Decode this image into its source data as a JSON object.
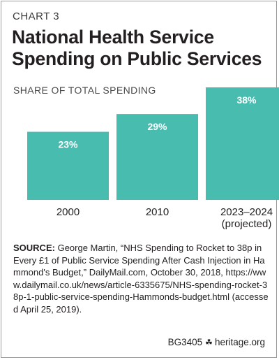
{
  "chart_label": "CHART 3",
  "title_line1": "National Health Service",
  "title_line2": "Spending on Public Services",
  "chart_data": {
    "type": "bar",
    "title": "National Health Service Spending on Public Services",
    "ylabel": "SHARE OF TOTAL SPENDING",
    "categories": [
      [
        "2000"
      ],
      [
        "2010"
      ],
      [
        "2023–2024",
        "(projected)"
      ]
    ],
    "values": [
      23,
      29,
      38
    ],
    "value_labels": [
      "23%",
      "29%",
      "38%"
    ],
    "ylim": [
      0,
      38
    ],
    "grid": false,
    "bar_color": "#49bcb0"
  },
  "source": {
    "label": "SOURCE:",
    "text": "George Martin, “NHS Spending to Rocket to 38p in Every £1 of Public Service Spending After Cash Injection in Hammond's Budget,” DailyMail.com, October 30, 2018, https://www.dailymail.co.uk/news/article-6335675/NHS-spending-rocket-38p-1-public-service-spending-Hammonds-budget.html (accessed April 25, 2019)."
  },
  "footer": {
    "code": "BG3405",
    "icon": "liberty-bell-icon",
    "site": "heritage.org"
  }
}
